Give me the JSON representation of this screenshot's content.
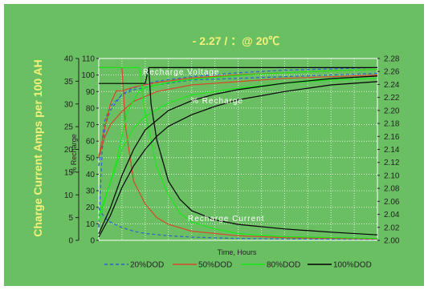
{
  "chart_data": {
    "type": "line",
    "title": "- 2.27 / ：@ 20℃",
    "xlabel": "Time, Hours",
    "ylabel_left_outer": "Charge Current Amps per 100 AH",
    "ylabel_left_inner": "% Recharge",
    "y_outer": {
      "min": 0,
      "max": 40,
      "step": 5
    },
    "y_inner": {
      "min": 0,
      "max": 110,
      "step": 10
    },
    "y_right": {
      "min": 2.0,
      "max": 2.28,
      "step": 0.02
    },
    "grid": true,
    "legend_position": "bottom",
    "annotations": [
      {
        "text": "Recharge Voltage"
      },
      {
        "text": "% Recharge"
      },
      {
        "text": "Recharge Current"
      }
    ],
    "legend": [
      "20%DOD",
      "50%DOD",
      "80%DOD",
      "100%DOD"
    ],
    "colors": {
      "background": "#6bbf63",
      "title": "#f2f27a",
      "axis_label": "#f2f27a",
      "grid": "#ffffff",
      "text": "#222222"
    },
    "series": [
      {
        "name": "20%DOD",
        "color": "#2f5fd0",
        "dash": "4,3",
        "voltage_volts": [
          [
            0,
            2.02
          ],
          [
            0.3,
            2.14
          ],
          [
            0.6,
            2.18
          ],
          [
            1,
            2.2
          ],
          [
            2,
            2.225
          ],
          [
            3,
            2.235
          ],
          [
            5,
            2.245
          ],
          [
            8,
            2.252
          ],
          [
            12,
            2.258
          ],
          [
            16,
            2.262
          ],
          [
            20,
            2.264
          ],
          [
            24,
            2.266
          ]
        ],
        "recharge_pct": [
          [
            0,
            45
          ],
          [
            0.5,
            72
          ],
          [
            1,
            81
          ],
          [
            2,
            88
          ],
          [
            3,
            91
          ],
          [
            5,
            94
          ],
          [
            8,
            97
          ],
          [
            12,
            98
          ],
          [
            16,
            99
          ],
          [
            20,
            100
          ],
          [
            24,
            101
          ]
        ],
        "current_amps": [
          [
            0,
            7
          ],
          [
            0.5,
            5
          ],
          [
            1,
            4
          ],
          [
            2,
            2.8
          ],
          [
            3,
            2
          ],
          [
            4,
            1.5
          ],
          [
            6,
            1
          ],
          [
            8,
            0.7
          ],
          [
            12,
            0.4
          ],
          [
            16,
            0.3
          ],
          [
            24,
            0.2
          ]
        ]
      },
      {
        "name": "50%DOD",
        "color": "#d7462b",
        "dash": "",
        "voltage_volts": [
          [
            0,
            2.13
          ],
          [
            0.6,
            2.18
          ],
          [
            1,
            2.21
          ],
          [
            1.5,
            2.23
          ],
          [
            2,
            2.23
          ],
          [
            3,
            2.236
          ],
          [
            5,
            2.243
          ],
          [
            8,
            2.25
          ],
          [
            12,
            2.255
          ],
          [
            16,
            2.258
          ],
          [
            20,
            2.261
          ],
          [
            24,
            2.263
          ]
        ],
        "recharge_pct": [
          [
            0,
            50
          ],
          [
            0.5,
            62
          ],
          [
            1,
            70
          ],
          [
            2,
            78
          ],
          [
            3,
            84
          ],
          [
            5,
            90
          ],
          [
            8,
            94
          ],
          [
            12,
            96
          ],
          [
            16,
            98
          ],
          [
            20,
            99
          ],
          [
            24,
            100
          ]
        ],
        "current_amps": [
          [
            0,
            38
          ],
          [
            2,
            38
          ],
          [
            2.3,
            25
          ],
          [
            3,
            13
          ],
          [
            4,
            8
          ],
          [
            5,
            5
          ],
          [
            6,
            3.5
          ],
          [
            8,
            2
          ],
          [
            12,
            1
          ],
          [
            16,
            0.6
          ],
          [
            24,
            0.3
          ]
        ]
      },
      {
        "name": "80%DOD",
        "color": "#18e818",
        "dash": "",
        "voltage_volts": [
          [
            0,
            2.03
          ],
          [
            1.5,
            2.12
          ],
          [
            2.5,
            2.2
          ],
          [
            3.5,
            2.23
          ],
          [
            4,
            2.235
          ],
          [
            6,
            2.243
          ],
          [
            8,
            2.248
          ],
          [
            12,
            2.254
          ],
          [
            16,
            2.258
          ],
          [
            20,
            2.261
          ],
          [
            24,
            2.263
          ]
        ],
        "recharge_pct": [
          [
            0,
            15
          ],
          [
            1,
            35
          ],
          [
            2,
            55
          ],
          [
            3,
            68
          ],
          [
            4,
            75
          ],
          [
            6,
            83
          ],
          [
            8,
            88
          ],
          [
            12,
            92
          ],
          [
            16,
            95
          ],
          [
            20,
            97
          ],
          [
            24,
            98
          ]
        ],
        "current_amps": [
          [
            0,
            38
          ],
          [
            3.5,
            38
          ],
          [
            4,
            28
          ],
          [
            5,
            16
          ],
          [
            6,
            10
          ],
          [
            7,
            6
          ],
          [
            8,
            4
          ],
          [
            10,
            2.5
          ],
          [
            12,
            1.5
          ],
          [
            16,
            0.8
          ],
          [
            24,
            0.4
          ]
        ]
      },
      {
        "name": "100%DOD",
        "color": "#000000",
        "dash": "",
        "voltage_volts": [
          [
            0,
            2.01
          ],
          [
            1,
            2.05
          ],
          [
            2,
            2.1
          ],
          [
            3,
            2.14
          ],
          [
            4,
            2.17
          ],
          [
            6,
            2.2
          ],
          [
            8,
            2.215
          ],
          [
            10,
            2.225
          ],
          [
            12,
            2.232
          ],
          [
            16,
            2.242
          ],
          [
            20,
            2.249
          ],
          [
            24,
            2.253
          ]
        ],
        "recharge_pct": [
          [
            0,
            2
          ],
          [
            1,
            15
          ],
          [
            2,
            32
          ],
          [
            3,
            45
          ],
          [
            4,
            55
          ],
          [
            5,
            63
          ],
          [
            6,
            69
          ],
          [
            8,
            76
          ],
          [
            10,
            81
          ],
          [
            12,
            85
          ],
          [
            16,
            90
          ],
          [
            20,
            94
          ],
          [
            24,
            96
          ]
        ],
        "current_amps": [
          [
            0,
            34.5
          ],
          [
            3,
            34.5
          ],
          [
            4,
            34.5
          ],
          [
            4.3,
            38
          ],
          [
            8,
            38
          ],
          [
            24,
            38
          ],
          [
            4.5,
            30
          ],
          [
            5,
            22
          ],
          [
            6,
            13
          ],
          [
            7,
            9
          ],
          [
            8,
            6.5
          ],
          [
            10,
            4.5
          ],
          [
            12,
            3.5
          ],
          [
            16,
            2.5
          ],
          [
            20,
            1.8
          ],
          [
            24,
            1.2
          ]
        ]
      }
    ],
    "x": {
      "min": 0,
      "max": 24
    }
  }
}
